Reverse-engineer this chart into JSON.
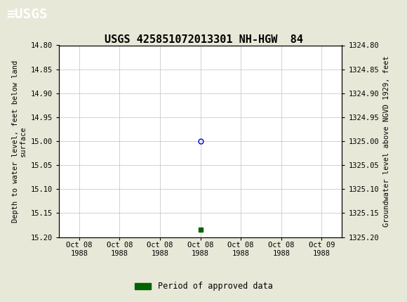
{
  "title": "USGS 425851072013301 NH-HGW  84",
  "title_fontsize": 11,
  "header_color": "#1a6b3c",
  "bg_color": "#e8e8d8",
  "plot_bg_color": "#ffffff",
  "grid_color": "#c0c0c0",
  "ylabel_left": "Depth to water level, feet below land\nsurface",
  "ylabel_right": "Groundwater level above NGVD 1929, feet",
  "ylim_left": [
    14.8,
    15.2
  ],
  "ylim_right": [
    1324.8,
    1325.2
  ],
  "yticks_left": [
    14.8,
    14.85,
    14.9,
    14.95,
    15.0,
    15.05,
    15.1,
    15.15,
    15.2
  ],
  "yticks_right": [
    1324.8,
    1324.85,
    1324.9,
    1324.95,
    1325.0,
    1325.05,
    1325.1,
    1325.15,
    1325.2
  ],
  "data_point_y": 15.0,
  "data_point_color": "#0000cc",
  "green_marker_y": 15.185,
  "green_marker_color": "#006400",
  "legend_label": "Period of approved data",
  "legend_color": "#006400",
  "font_family": "monospace",
  "tick_fontsize": 7.5,
  "label_fontsize": 7.5,
  "x_tick_hours": [
    0,
    4,
    8,
    12,
    16,
    20,
    24
  ],
  "x_tick_labels": [
    "Oct 08\n1988",
    "Oct 08\n1988",
    "Oct 08\n1988",
    "Oct 08\n1988",
    "Oct 08\n1988",
    "Oct 08\n1988",
    "Oct 09\n1988"
  ]
}
